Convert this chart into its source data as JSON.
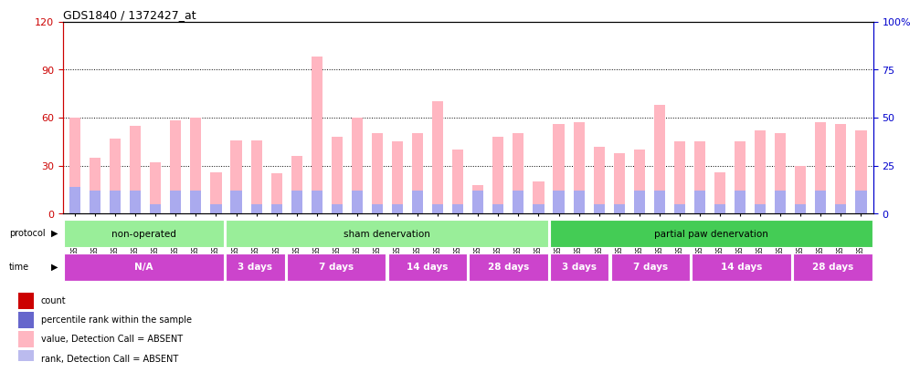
{
  "title": "GDS1840 / 1372427_at",
  "samples": [
    "GSM53196",
    "GSM53197",
    "GSM53198",
    "GSM53199",
    "GSM53200",
    "GSM53201",
    "GSM53202",
    "GSM53203",
    "GSM53208",
    "GSM53209",
    "GSM53210",
    "GSM53211",
    "GSM53216",
    "GSM53217",
    "GSM53218",
    "GSM53219",
    "GSM53224",
    "GSM53225",
    "GSM53226",
    "GSM53227",
    "GSM53232",
    "GSM53233",
    "GSM53234",
    "GSM53235",
    "GSM53204",
    "GSM53205",
    "GSM53206",
    "GSM53207",
    "GSM53212",
    "GSM53213",
    "GSM53214",
    "GSM53215",
    "GSM53220",
    "GSM53221",
    "GSM53222",
    "GSM53223",
    "GSM53228",
    "GSM53229",
    "GSM53230",
    "GSM53231"
  ],
  "values": [
    60,
    35,
    47,
    55,
    32,
    58,
    60,
    26,
    46,
    46,
    25,
    36,
    98,
    48,
    60,
    50,
    45,
    50,
    70,
    40,
    18,
    48,
    50,
    20,
    56,
    57,
    42,
    38,
    40,
    68,
    45,
    45,
    26,
    45,
    52,
    50,
    30,
    57,
    56,
    52
  ],
  "ranks": [
    14,
    12,
    12,
    12,
    5,
    12,
    12,
    5,
    12,
    5,
    5,
    12,
    12,
    5,
    12,
    5,
    5,
    12,
    5,
    5,
    12,
    5,
    12,
    5,
    12,
    12,
    5,
    5,
    12,
    12,
    5,
    12,
    5,
    12,
    5,
    12,
    5,
    12,
    5,
    12
  ],
  "value_color": "#FFB6C1",
  "rank_color": "#AAAAEE",
  "ylim_left": [
    0,
    120
  ],
  "ylim_right": [
    0,
    100
  ],
  "yticks_left": [
    0,
    30,
    60,
    90,
    120
  ],
  "yticks_right": [
    0,
    25,
    50,
    75,
    100
  ],
  "ytick_labels_right": [
    "0",
    "25",
    "50",
    "75",
    "100%"
  ],
  "grid_values": [
    30,
    60,
    90
  ],
  "proto_groups": [
    {
      "label": "non-operated",
      "start": 0,
      "end": 8,
      "color": "#99EE99"
    },
    {
      "label": "sham denervation",
      "start": 8,
      "end": 24,
      "color": "#99EE99"
    },
    {
      "label": "partial paw denervation",
      "start": 24,
      "end": 40,
      "color": "#44CC55"
    }
  ],
  "time_groups": [
    {
      "label": "N/A",
      "start": 0,
      "end": 8,
      "color": "#CC44CC"
    },
    {
      "label": "3 days",
      "start": 8,
      "end": 11,
      "color": "#CC44CC"
    },
    {
      "label": "7 days",
      "start": 11,
      "end": 16,
      "color": "#CC44CC"
    },
    {
      "label": "14 days",
      "start": 16,
      "end": 20,
      "color": "#CC44CC"
    },
    {
      "label": "28 days",
      "start": 20,
      "end": 24,
      "color": "#CC44CC"
    },
    {
      "label": "3 days",
      "start": 24,
      "end": 27,
      "color": "#CC44CC"
    },
    {
      "label": "7 days",
      "start": 27,
      "end": 31,
      "color": "#CC44CC"
    },
    {
      "label": "14 days",
      "start": 31,
      "end": 36,
      "color": "#CC44CC"
    },
    {
      "label": "28 days",
      "start": 36,
      "end": 40,
      "color": "#CC44CC"
    }
  ],
  "legend_colors": [
    "#CC0000",
    "#6666CC",
    "#FFB6C1",
    "#BBBBEE"
  ],
  "legend_labels": [
    "count",
    "percentile rank within the sample",
    "value, Detection Call = ABSENT",
    "rank, Detection Call = ABSENT"
  ],
  "bg_color": "#FFFFFF",
  "axis_color_left": "#CC0000",
  "axis_color_right": "#0000CC"
}
